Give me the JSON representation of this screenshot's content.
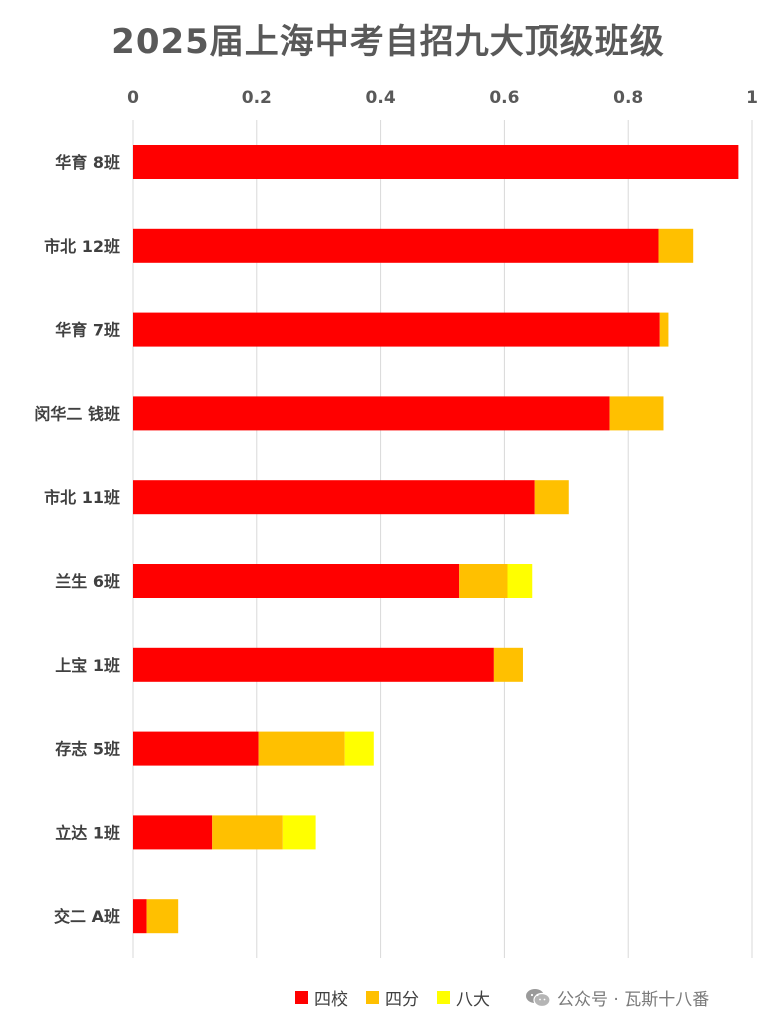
{
  "chart_data": {
    "type": "bar",
    "orientation": "horizontal",
    "stacked": true,
    "title": "2025届上海中考自招九大顶级班级",
    "categories": [
      "华育 8班",
      "市北 12班",
      "华育 7班",
      "闵华二 钱班",
      "市北 11班",
      "兰生 6班",
      "上宝 1班",
      "存志 5班",
      "立达 1班",
      "交二 A班"
    ],
    "series": [
      {
        "name": "四校",
        "color": "#ff0000",
        "values": [
          0.978,
          0.849,
          0.851,
          0.77,
          0.649,
          0.527,
          0.583,
          0.203,
          0.128,
          0.022
        ]
      },
      {
        "name": "四分",
        "color": "#ffc000",
        "values": [
          0.0,
          0.056,
          0.014,
          0.087,
          0.055,
          0.078,
          0.047,
          0.139,
          0.114,
          0.051
        ]
      },
      {
        "name": "八大",
        "color": "#ffff00",
        "values": [
          0.0,
          0.0,
          0.0,
          0.0,
          0.0,
          0.04,
          0.0,
          0.047,
          0.053,
          0.0
        ]
      }
    ],
    "xlim": [
      0,
      1
    ],
    "xticks": [
      "0",
      "0.2",
      "0.4",
      "0.6",
      "0.8",
      "1"
    ],
    "x_axis_position": "top",
    "grid": true,
    "legend_position": "bottom"
  },
  "watermark": {
    "text": "公众号 · 瓦斯十八番",
    "icon": "wechat-icon"
  }
}
